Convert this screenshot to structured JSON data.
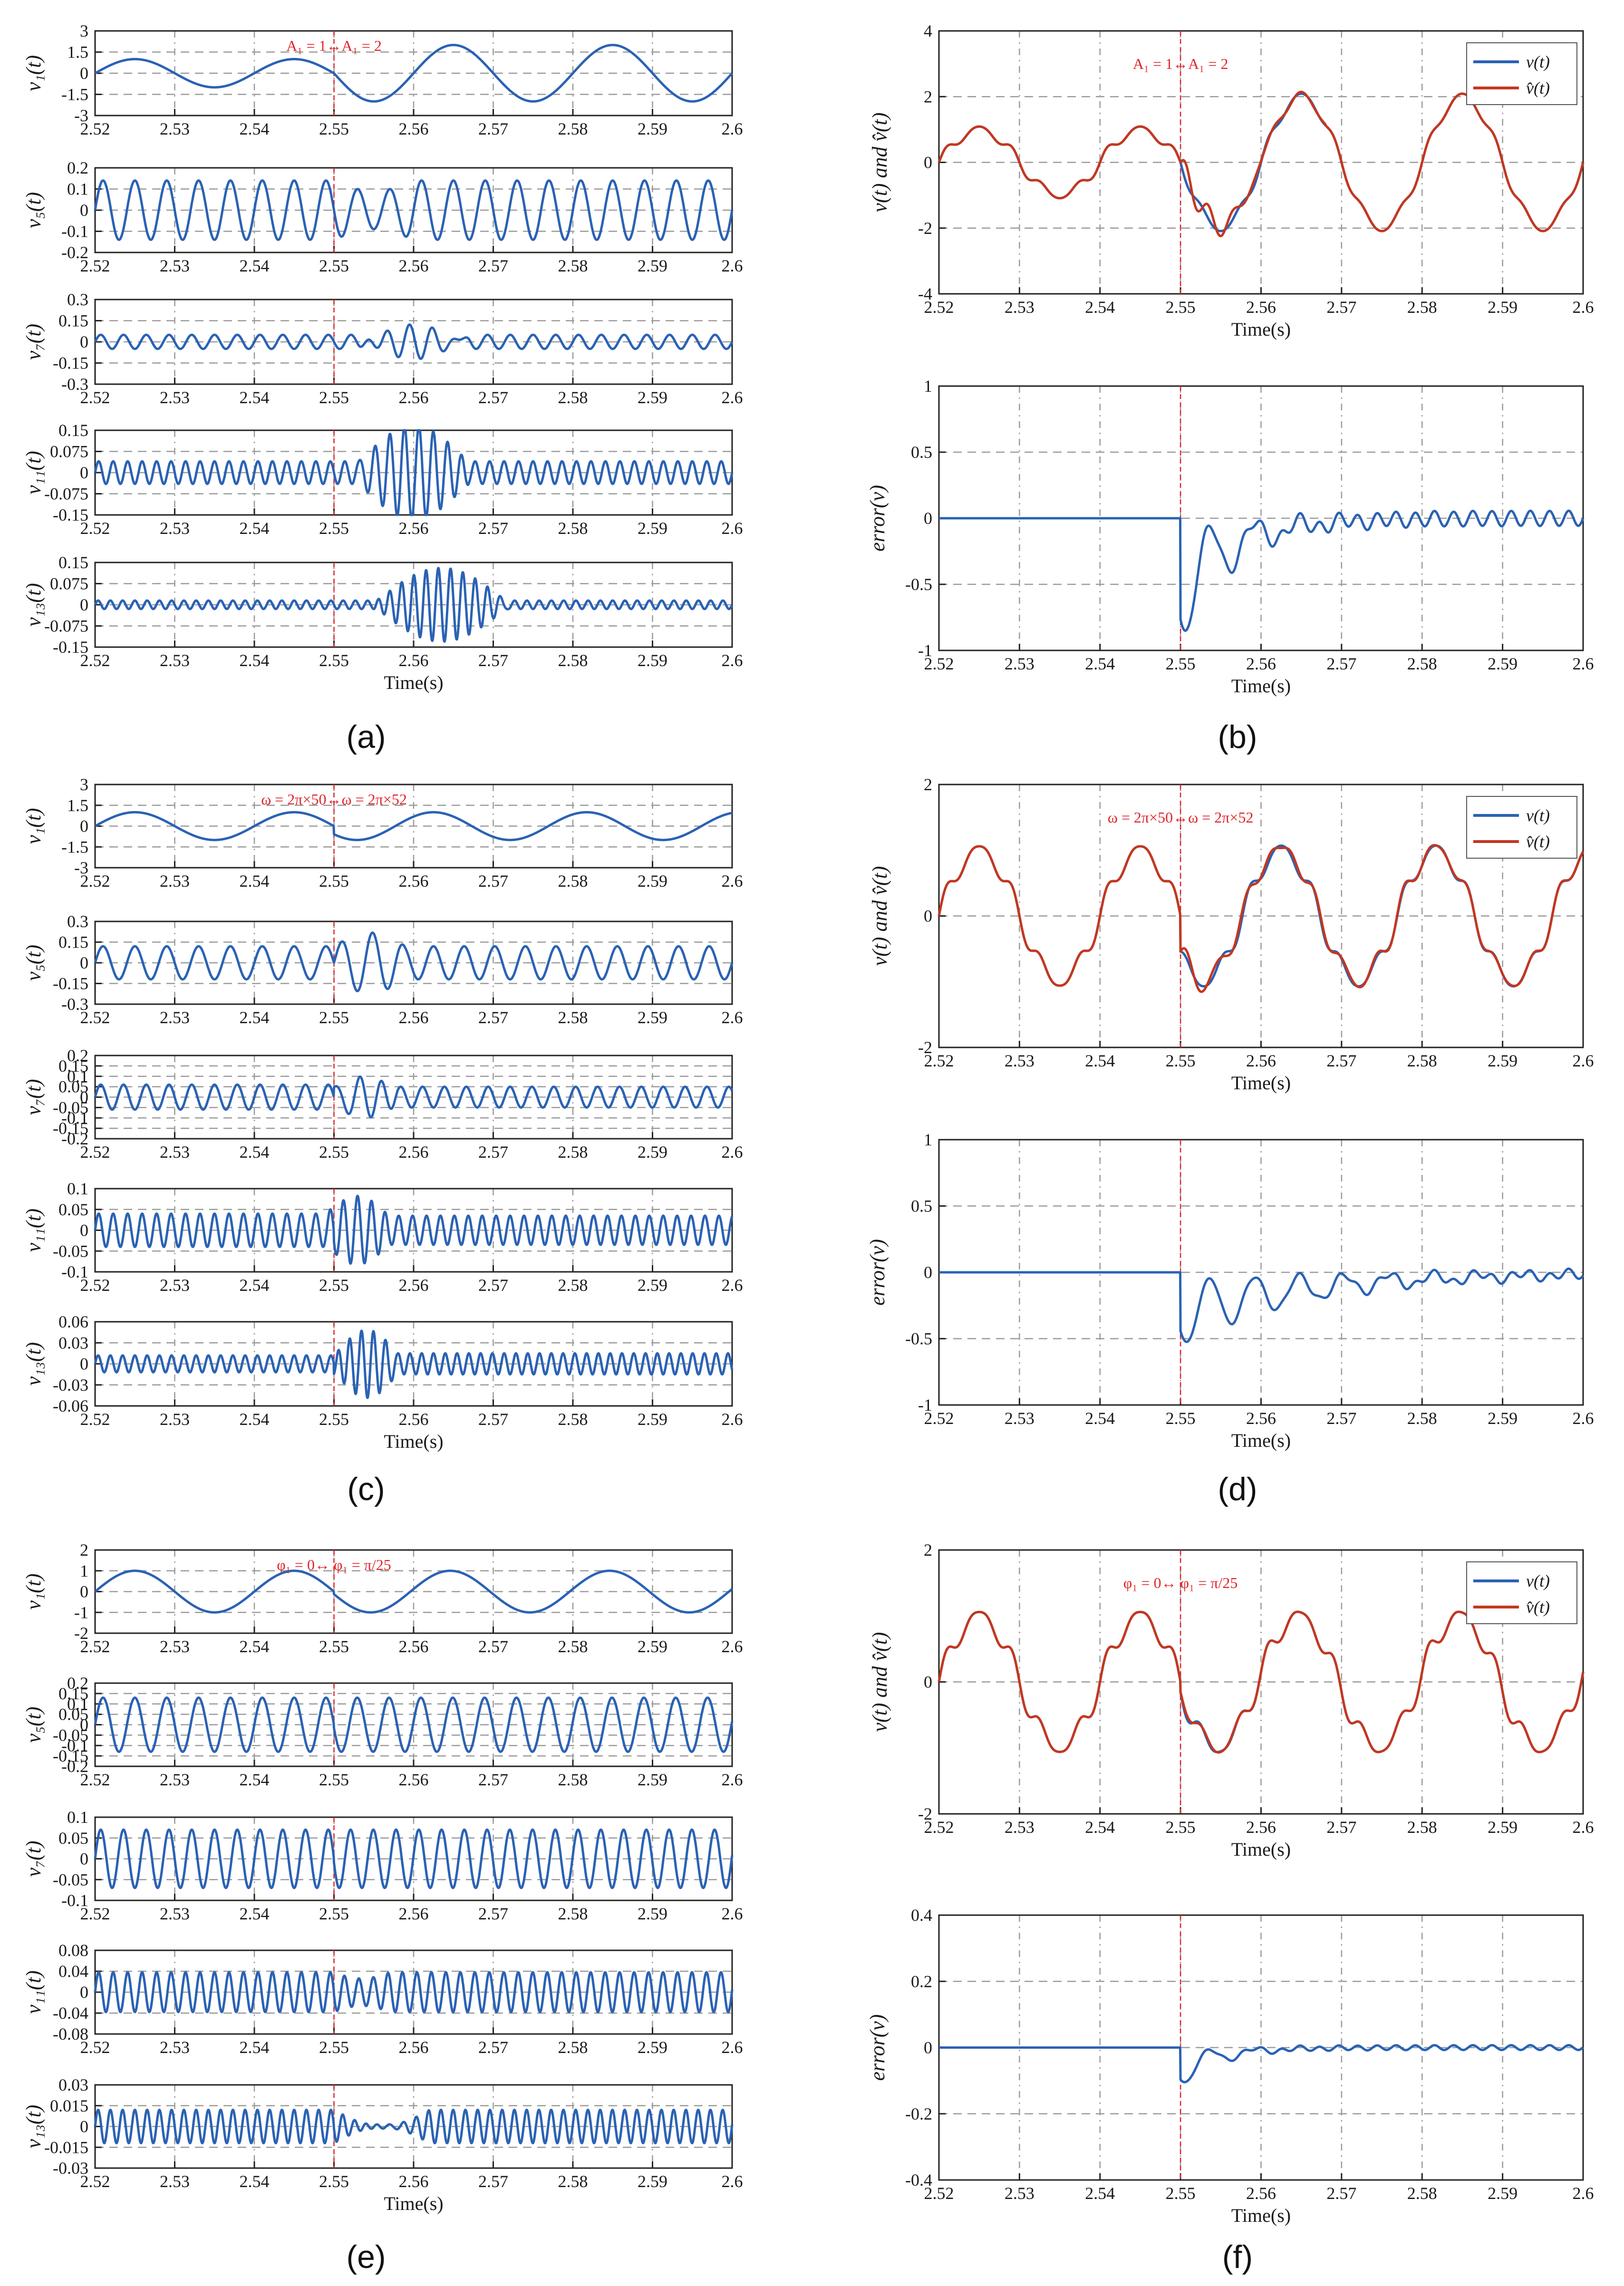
{
  "colors": {
    "signal": "#2a62b4",
    "estimate": "#c4371f",
    "event": "#e0262b",
    "grid": "#9a9a9a",
    "frame": "#222222"
  },
  "panel_labels": {
    "a": "(a)",
    "b": "(b)",
    "c": "(c)",
    "d": "(d)",
    "e": "(e)",
    "f": "(f)"
  },
  "chart_data": [
    {
      "panel": "a",
      "type": "line",
      "xlabel": "Time(s)",
      "x_ticks": [
        "2.52",
        "2.53",
        "2.54",
        "2.55",
        "2.56",
        "2.57",
        "2.58",
        "2.59",
        "2.6"
      ],
      "annotation": "A₁ = 1↔A₁ = 2",
      "event_x": 2.55,
      "subplots": [
        {
          "ylabel": "v₁(t)",
          "ylim": [
            -3,
            3
          ],
          "yticks": [
            "3",
            "1.5",
            "0",
            "-1.5",
            "-3"
          ],
          "description": "fundamental, amplitude 1 before 2.55 s, 2 after",
          "segments": [
            {
              "components": [
                {
                  "A": 1,
                  "f": 50,
                  "phi": 0
                }
              ]
            },
            {
              "components": [
                {
                  "A": 2,
                  "f": 50,
                  "phi": 0
                }
              ]
            }
          ]
        },
        {
          "ylabel": "v₅(t)",
          "ylim": [
            -0.2,
            0.2
          ],
          "yticks": [
            "0.2",
            "0.1",
            "0",
            "-0.1",
            "-0.2"
          ],
          "segments": [
            {
              "components": [
                {
                  "A": 0.14,
                  "f": 250,
                  "phi": 0
                }
              ]
            },
            {
              "components": [
                {
                  "A": 0.14,
                  "f": 250,
                  "phi": 0
                }
              ]
            }
          ],
          "transient": {
            "start": 2.55,
            "end": 2.56,
            "amp": 0.05,
            "f": 250
          }
        },
        {
          "ylabel": "v₇(t)",
          "ylim": [
            -0.3,
            0.3
          ],
          "yticks": [
            "0.3",
            "0.15",
            "0",
            "-0.15",
            "-0.3"
          ],
          "segments": [
            {
              "components": [
                {
                  "A": 0.05,
                  "f": 350,
                  "phi": 0
                }
              ]
            },
            {
              "components": [
                {
                  "A": 0.05,
                  "f": 350,
                  "phi": 0
                }
              ]
            }
          ],
          "transient": {
            "start": 2.553,
            "end": 2.567,
            "amp": 0.17,
            "f": 350
          }
        },
        {
          "ylabel": "v₁₁(t)",
          "ylim": [
            -0.15,
            0.15
          ],
          "yticks": [
            "0.15",
            "0.075",
            "0",
            "-0.075",
            "-0.15"
          ],
          "segments": [
            {
              "components": [
                {
                  "A": 0.04,
                  "f": 550,
                  "phi": 0
                }
              ]
            },
            {
              "components": [
                {
                  "A": 0.04,
                  "f": 550,
                  "phi": 0
                }
              ]
            }
          ],
          "transient": {
            "start": 2.553,
            "end": 2.567,
            "amp": 0.14,
            "f": 550
          }
        },
        {
          "ylabel": "v₁₃(t)",
          "ylim": [
            -0.15,
            0.15
          ],
          "yticks": [
            "0.15",
            "0.075",
            "0",
            "-0.075",
            "-0.15"
          ],
          "segments": [
            {
              "components": [
                {
                  "A": 0.015,
                  "f": 650,
                  "phi": 0
                }
              ]
            },
            {
              "components": [
                {
                  "A": 0.015,
                  "f": 650,
                  "phi": 0
                }
              ]
            }
          ],
          "transient": {
            "start": 2.555,
            "end": 2.572,
            "amp": 0.13,
            "f": 650
          }
        }
      ]
    },
    {
      "panel": "b",
      "type": "line",
      "xlabel": "Time(s)",
      "x_ticks": [
        "2.52",
        "2.53",
        "2.54",
        "2.55",
        "2.56",
        "2.57",
        "2.58",
        "2.59",
        "2.6"
      ],
      "annotation": "A₁ = 1↔A₁ = 2",
      "event_x": 2.55,
      "legend": [
        "v(t)",
        "v̂(t)"
      ],
      "legend_position": "top-right",
      "signal": {
        "ylabel": "v(t) and v̂(t)",
        "ylim": [
          -4,
          4
        ],
        "yticks": [
          "4",
          "2",
          "0",
          "-2",
          "-4"
        ],
        "segments": [
          {
            "components": [
              {
                "A": 1,
                "f": 50,
                "phi": 0
              },
              {
                "A": 0.14,
                "f": 250,
                "phi": 0
              },
              {
                "A": 0.05,
                "f": 350,
                "phi": 0
              }
            ]
          },
          {
            "components": [
              {
                "A": 2,
                "f": 50,
                "phi": 0
              },
              {
                "A": 0.14,
                "f": 250,
                "phi": 0
              },
              {
                "A": 0.05,
                "f": 350,
                "phi": 0
              }
            ]
          }
        ],
        "estimate_error": {
          "start": 2.55,
          "end": 2.568,
          "amp": 0.95,
          "f": 350
        }
      },
      "error": {
        "ylabel": "error(v)",
        "ylim": [
          -1,
          1
        ],
        "yticks": [
          "1",
          "0.5",
          "0",
          "-0.5",
          "-1"
        ],
        "peak": -0.95,
        "settle": 2.57
      }
    },
    {
      "panel": "c",
      "type": "line",
      "xlabel": "Time(s)",
      "x_ticks": [
        "2.52",
        "2.53",
        "2.54",
        "2.55",
        "2.56",
        "2.57",
        "2.58",
        "2.59",
        "2.6"
      ],
      "annotation": "ω = 2π×50↔ω = 2π×52",
      "event_x": 2.55,
      "subplots": [
        {
          "ylabel": "v₁(t)",
          "ylim": [
            -3,
            3
          ],
          "yticks": [
            "3",
            "1.5",
            "0",
            "-1.5",
            "-3"
          ],
          "description": "fundamental 50 Hz before 2.55 s, 52 Hz after",
          "segments": [
            {
              "components": [
                {
                  "A": 1,
                  "f": 50,
                  "phi": 0
                }
              ]
            },
            {
              "components": [
                {
                  "A": 1,
                  "f": 52,
                  "phi": 0
                }
              ]
            }
          ]
        },
        {
          "ylabel": "v₅(t)",
          "ylim": [
            -0.3,
            0.3
          ],
          "yticks": [
            "0.3",
            "0.15",
            "0",
            "-0.15",
            "-0.3"
          ],
          "segments": [
            {
              "components": [
                {
                  "A": 0.12,
                  "f": 250,
                  "phi": 0
                }
              ]
            },
            {
              "components": [
                {
                  "A": 0.12,
                  "f": 260,
                  "phi": 0
                }
              ]
            }
          ],
          "transient": {
            "start": 2.55,
            "end": 2.559,
            "amp": 0.1,
            "f": 255
          }
        },
        {
          "ylabel": "v₇(t)",
          "ylim": [
            -0.2,
            0.2
          ],
          "yticks": [
            "0.2",
            "0.15",
            "0.1",
            "0.05",
            "0",
            "-0.05",
            "-0.1",
            "-0.15",
            "-0.2"
          ],
          "segments": [
            {
              "components": [
                {
                  "A": 0.06,
                  "f": 350,
                  "phi": 0
                }
              ]
            },
            {
              "components": [
                {
                  "A": 0.05,
                  "f": 364,
                  "phi": 0
                }
              ]
            }
          ],
          "transient": {
            "start": 2.55,
            "end": 2.558,
            "amp": 0.08,
            "f": 357
          }
        },
        {
          "ylabel": "v₁₁(t)",
          "ylim": [
            -0.1,
            0.1
          ],
          "yticks": [
            "0.1",
            "0.05",
            "0",
            "-0.05",
            "-0.1"
          ],
          "segments": [
            {
              "components": [
                {
                  "A": 0.04,
                  "f": 550,
                  "phi": 0
                }
              ]
            },
            {
              "components": [
                {
                  "A": 0.035,
                  "f": 572,
                  "phi": 0
                }
              ]
            }
          ],
          "transient": {
            "start": 2.549,
            "end": 2.557,
            "amp": 0.05,
            "f": 560
          }
        },
        {
          "ylabel": "v₁₃(t)",
          "ylim": [
            -0.06,
            0.06
          ],
          "yticks": [
            "0.06",
            "0.03",
            "0",
            "-0.03",
            "-0.06"
          ],
          "segments": [
            {
              "components": [
                {
                  "A": 0.012,
                  "f": 650,
                  "phi": 0
                }
              ]
            },
            {
              "components": [
                {
                  "A": 0.015,
                  "f": 676,
                  "phi": 0
                }
              ]
            }
          ],
          "transient": {
            "start": 2.55,
            "end": 2.558,
            "amp": 0.038,
            "f": 663
          }
        }
      ]
    },
    {
      "panel": "d",
      "type": "line",
      "xlabel": "Time(s)",
      "x_ticks": [
        "2.52",
        "2.53",
        "2.54",
        "2.55",
        "2.56",
        "2.57",
        "2.58",
        "2.59",
        "2.6"
      ],
      "annotation": "ω = 2π×50↔ω = 2π×52",
      "event_x": 2.55,
      "legend": [
        "v(t)",
        "v̂(t)"
      ],
      "legend_position": "top-right",
      "signal": {
        "ylabel": "v(t) and v̂(t)",
        "ylim": [
          -2,
          2
        ],
        "yticks": [
          "2",
          "0",
          "-2"
        ],
        "segments": [
          {
            "components": [
              {
                "A": 1,
                "f": 50,
                "phi": 0
              },
              {
                "A": 0.12,
                "f": 250,
                "phi": 0
              },
              {
                "A": 0.06,
                "f": 350,
                "phi": 0
              }
            ]
          },
          {
            "components": [
              {
                "A": 1,
                "f": 52,
                "phi": 0
              },
              {
                "A": 0.12,
                "f": 260,
                "phi": 0
              },
              {
                "A": 0.05,
                "f": 364,
                "phi": 0
              }
            ]
          }
        ],
        "estimate_error": {
          "start": 2.55,
          "end": 2.6,
          "amp": 0.2,
          "f": 300
        }
      },
      "error": {
        "ylabel": "error(v)",
        "ylim": [
          -1,
          1
        ],
        "yticks": [
          "1",
          "0.5",
          "0",
          "-0.5",
          "-1"
        ],
        "peak": -0.55,
        "settle": 2.6
      }
    },
    {
      "panel": "e",
      "type": "line",
      "xlabel": "Time(s)",
      "x_ticks": [
        "2.52",
        "2.53",
        "2.54",
        "2.55",
        "2.56",
        "2.57",
        "2.58",
        "2.59",
        "2.6"
      ],
      "annotation": "φ₁ = 0↔ φ₁ = π/25",
      "event_x": 2.55,
      "subplots": [
        {
          "ylabel": "v₁(t)",
          "ylim": [
            -2,
            2
          ],
          "yticks": [
            "2",
            "1",
            "0",
            "-1",
            "-2"
          ],
          "description": "fundamental, phase 0 before 2.55 s, π/25 after",
          "segments": [
            {
              "components": [
                {
                  "A": 1,
                  "f": 50,
                  "phi": 0
                }
              ]
            },
            {
              "components": [
                {
                  "A": 1,
                  "f": 50,
                  "phi": 0.1257
                }
              ]
            }
          ]
        },
        {
          "ylabel": "v₅(t)",
          "ylim": [
            -0.2,
            0.2
          ],
          "yticks": [
            "0.2",
            "0.15",
            "0.1",
            "0.05",
            "0",
            "-0.05",
            "-0.1",
            "-0.15",
            "-0.2"
          ],
          "segments": [
            {
              "components": [
                {
                  "A": 0.13,
                  "f": 250,
                  "phi": 0
                }
              ]
            },
            {
              "components": [
                {
                  "A": 0.13,
                  "f": 250,
                  "phi": 0.1257
                }
              ]
            }
          ]
        },
        {
          "ylabel": "v₇(t)",
          "ylim": [
            -0.1,
            0.1
          ],
          "yticks": [
            "0.1",
            "0.05",
            "0",
            "-0.05",
            "-0.1"
          ],
          "segments": [
            {
              "components": [
                {
                  "A": 0.07,
                  "f": 350,
                  "phi": 0
                }
              ]
            },
            {
              "components": [
                {
                  "A": 0.07,
                  "f": 350,
                  "phi": 0.1257
                }
              ]
            }
          ]
        },
        {
          "ylabel": "v₁₁(t)",
          "ylim": [
            -0.08,
            0.08
          ],
          "yticks": [
            "0.08",
            "0.04",
            "0",
            "-0.04",
            "-0.08"
          ],
          "segments": [
            {
              "components": [
                {
                  "A": 0.038,
                  "f": 550,
                  "phi": 0
                }
              ]
            },
            {
              "components": [
                {
                  "A": 0.038,
                  "f": 550,
                  "phi": 0.1257
                }
              ]
            }
          ],
          "transient": {
            "start": 2.55,
            "end": 2.557,
            "amp": 0.012,
            "f": 550
          }
        },
        {
          "ylabel": "v₁₃(t)",
          "ylim": [
            -0.03,
            0.03
          ],
          "yticks": [
            "0.03",
            "0.015",
            "0",
            "-0.015",
            "-0.03"
          ],
          "segments": [
            {
              "components": [
                {
                  "A": 0.012,
                  "f": 650,
                  "phi": 0
                }
              ]
            },
            {
              "components": [
                {
                  "A": 0.012,
                  "f": 650,
                  "phi": 0.1257
                }
              ]
            }
          ],
          "transient": {
            "start": 2.55,
            "end": 2.562,
            "amp": 0.012,
            "f": 650
          }
        }
      ]
    },
    {
      "panel": "f",
      "type": "line",
      "xlabel": "Time(s)",
      "x_ticks": [
        "2.52",
        "2.53",
        "2.54",
        "2.55",
        "2.56",
        "2.57",
        "2.58",
        "2.59",
        "2.6"
      ],
      "annotation": "φ₁ = 0↔ φ₁ = π/25",
      "event_x": 2.55,
      "legend": [
        "v(t)",
        "v̂(t)"
      ],
      "legend_position": "top-right",
      "signal": {
        "ylabel": "v(t) and v̂(t)",
        "ylim": [
          -2,
          2
        ],
        "yticks": [
          "2",
          "0",
          "-2"
        ],
        "segments": [
          {
            "components": [
              {
                "A": 1,
                "f": 50,
                "phi": 0
              },
              {
                "A": 0.13,
                "f": 250,
                "phi": 0
              },
              {
                "A": 0.07,
                "f": 350,
                "phi": 0
              }
            ]
          },
          {
            "components": [
              {
                "A": 1,
                "f": 50,
                "phi": 0.1257
              },
              {
                "A": 0.13,
                "f": 250,
                "phi": 0.1257
              },
              {
                "A": 0.07,
                "f": 350,
                "phi": 0.1257
              }
            ]
          }
        ],
        "estimate_error": {
          "start": 2.55,
          "end": 2.562,
          "amp": 0.1,
          "f": 350
        }
      },
      "error": {
        "ylabel": "error(v)",
        "ylim": [
          -0.4,
          0.4
        ],
        "yticks": [
          "0.4",
          "0.2",
          "0",
          "-0.2",
          "-0.4"
        ],
        "peak": -0.12,
        "settle": 2.565
      }
    }
  ]
}
